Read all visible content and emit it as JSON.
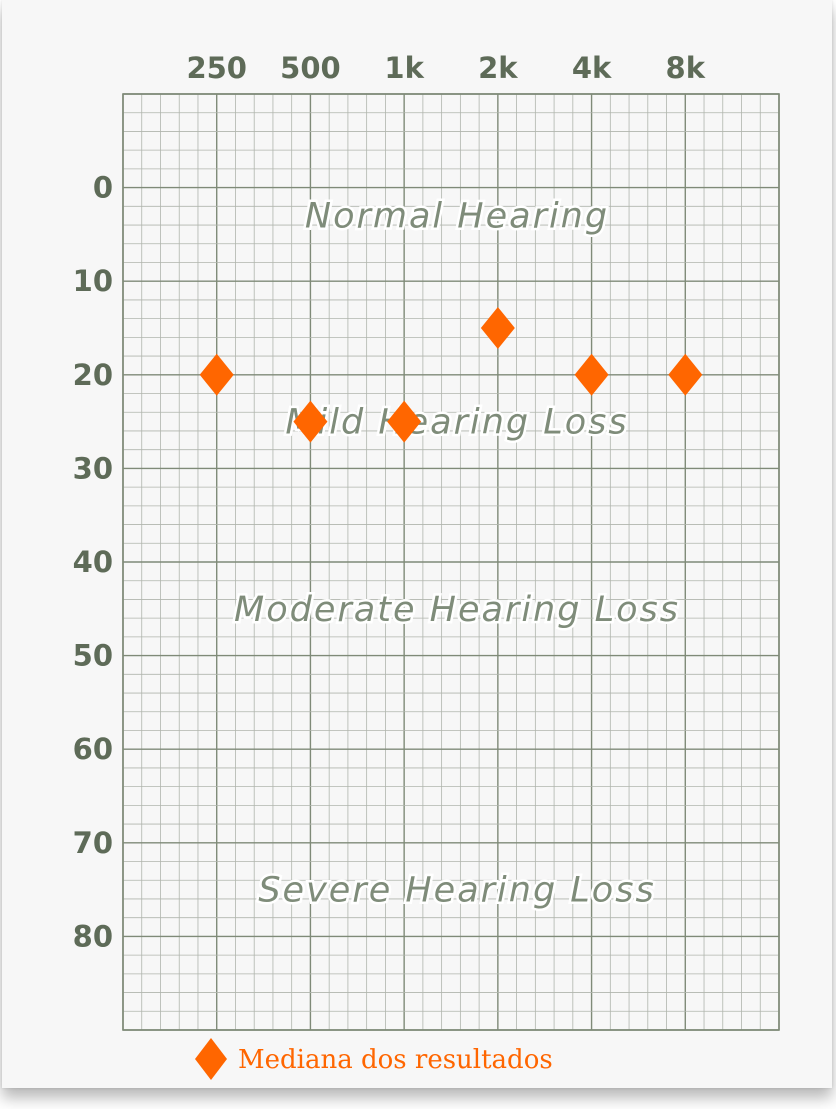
{
  "chart_data": {
    "type": "scatter",
    "x_categories": [
      "250",
      "500",
      "1k",
      "2k",
      "4k",
      "8k"
    ],
    "y_ticks": [
      0,
      10,
      20,
      30,
      40,
      50,
      60,
      70,
      80
    ],
    "ylim": [
      -10,
      90
    ],
    "y_inverted": true,
    "grid": true,
    "series": [
      {
        "name": "Mediana dos resultados",
        "marker": "diamond",
        "color": "#ff6600",
        "points": [
          {
            "x": "250",
            "y": 20
          },
          {
            "x": "500",
            "y": 25
          },
          {
            "x": "1k",
            "y": 25
          },
          {
            "x": "2k",
            "y": 15
          },
          {
            "x": "4k",
            "y": 20
          },
          {
            "x": "8k",
            "y": 20
          }
        ]
      }
    ],
    "regions": [
      {
        "label": "Normal Hearing",
        "y": 3
      },
      {
        "label": "Mild Hearing Loss",
        "y": 25
      },
      {
        "label": "Moderate Hearing Loss",
        "y": 45
      },
      {
        "label": "Severe Hearing Loss",
        "y": 75
      }
    ],
    "legend": {
      "label": "Mediana dos resultados",
      "placement": "bottom-left"
    }
  },
  "colors": {
    "grid_minor": "#b0b5ad",
    "grid_major": "#7f8a78",
    "axis_text": "#5e6b58",
    "marker": "#ff6600"
  }
}
